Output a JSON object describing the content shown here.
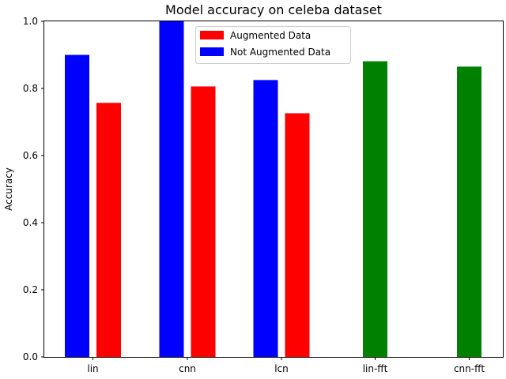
{
  "chart_data": {
    "type": "bar",
    "title": "Model accuracy on celeba dataset",
    "xlabel": "",
    "ylabel": "Accuracy",
    "ylim": [
      0,
      1.0
    ],
    "yticks": [
      0.0,
      0.2,
      0.4,
      0.6,
      0.8,
      1.0
    ],
    "ytick_labels": [
      "0.0",
      "0.2",
      "0.4",
      "0.6",
      "0.8",
      "1.0"
    ],
    "categories": [
      "lin",
      "cnn",
      "lcn",
      "lin-fft",
      "cnn-fft"
    ],
    "series": [
      {
        "name": "Not Augmented Data",
        "color": "#0000ff",
        "values": [
          0.9,
          1.0,
          0.825,
          null,
          null
        ]
      },
      {
        "name": "Augmented Data",
        "color": "#ff0000",
        "values": [
          0.757,
          0.806,
          0.726,
          null,
          null
        ]
      },
      {
        "name": "",
        "color": "#008000",
        "values": [
          null,
          null,
          null,
          0.881,
          0.865
        ]
      }
    ],
    "grid": false,
    "legend": {
      "placement": "upper center",
      "entries": [
        {
          "label": "Augmented Data",
          "color": "#ff0000"
        },
        {
          "label": "Not Augmented Data",
          "color": "#0000ff"
        }
      ]
    }
  }
}
